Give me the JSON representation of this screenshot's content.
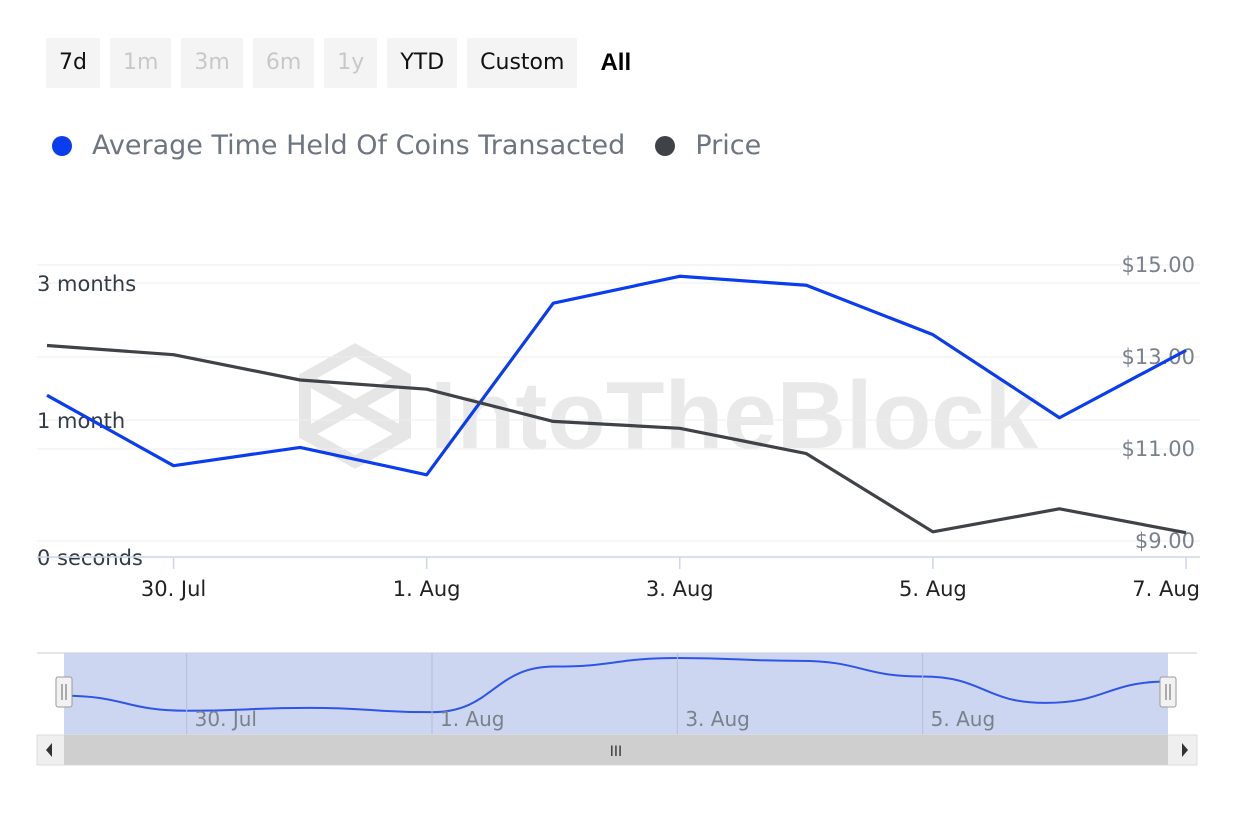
{
  "range_selector": {
    "buttons": [
      {
        "label": "7d",
        "state": "normal"
      },
      {
        "label": "1m",
        "state": "disabled"
      },
      {
        "label": "3m",
        "state": "disabled"
      },
      {
        "label": "6m",
        "state": "disabled"
      },
      {
        "label": "1y",
        "state": "disabled"
      },
      {
        "label": "YTD",
        "state": "normal"
      },
      {
        "label": "Custom",
        "state": "normal"
      },
      {
        "label": "All",
        "state": "active"
      }
    ]
  },
  "legend": [
    {
      "label": "Average Time Held Of Coins Transacted",
      "color": "#0a3cf0"
    },
    {
      "label": "Price",
      "color": "#3f4347"
    }
  ],
  "watermark": "IntoTheBlock",
  "chart_data": {
    "type": "line",
    "x": [
      "29. Jul",
      "30. Jul",
      "31. Jul",
      "1. Aug",
      "2. Aug",
      "3. Aug",
      "4. Aug",
      "5. Aug",
      "6. Aug",
      "7. Aug"
    ],
    "x_ticks": [
      "30. Jul",
      "1. Aug",
      "3. Aug",
      "5. Aug",
      "7. Aug"
    ],
    "series": [
      {
        "name": "Average Time Held Of Coins Transacted",
        "axis": "left",
        "unit": "days",
        "values": [
          41,
          20,
          24,
          18,
          82,
          94,
          90,
          68,
          31,
          61
        ]
      },
      {
        "name": "Price",
        "axis": "right",
        "unit": "USD",
        "values": [
          13.25,
          13.05,
          12.5,
          12.3,
          11.6,
          11.45,
          10.9,
          9.2,
          9.7,
          9.18
        ]
      }
    ],
    "y_left": {
      "ticks": [
        "0 seconds",
        "1 month",
        "3 months"
      ]
    },
    "y_right": {
      "ticks": [
        "$9.00",
        "$11.00",
        "$13.00",
        "$15.00"
      ],
      "ylim": [
        9,
        15
      ]
    },
    "grid": true,
    "legend_position": "top-left"
  },
  "navigator": {
    "labels": [
      "30. Jul",
      "1. Aug",
      "3. Aug",
      "5. Aug"
    ],
    "scroll_grip": "III"
  }
}
